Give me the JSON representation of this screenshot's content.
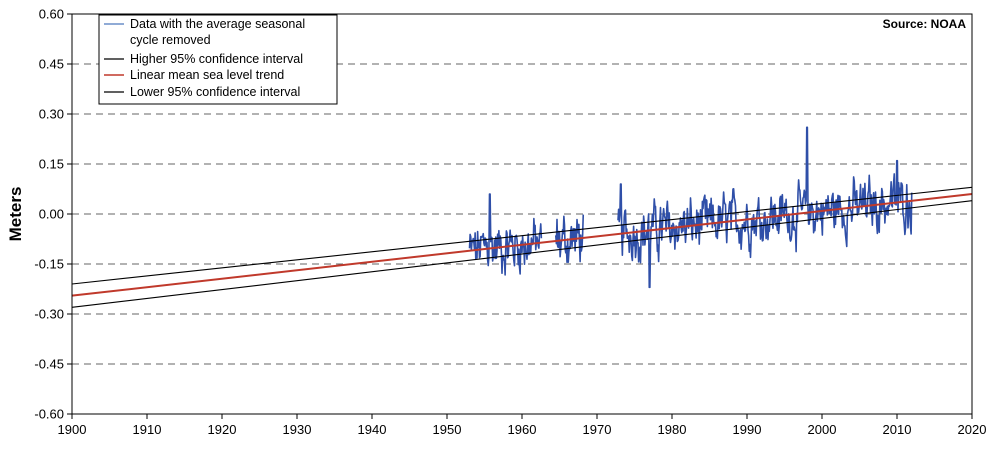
{
  "chart_data": {
    "type": "line",
    "source_label": "Source: NOAA",
    "ylabel": "Meters",
    "xlabel": "",
    "xlim": [
      1900,
      2020
    ],
    "ylim": [
      -0.6,
      0.6
    ],
    "x_ticks": [
      "1900",
      "1910",
      "1920",
      "1930",
      "1940",
      "1950",
      "1960",
      "1970",
      "1980",
      "1990",
      "2000",
      "2010",
      "2020"
    ],
    "y_ticks": [
      "0.60",
      "0.45",
      "0.30",
      "0.15",
      "0.00",
      "-0.15",
      "-0.30",
      "-0.45",
      "-0.60"
    ],
    "y_tick_values": [
      0.6,
      0.45,
      0.3,
      0.15,
      0.0,
      -0.15,
      -0.3,
      -0.45,
      -0.6
    ],
    "x_tick_values": [
      1900,
      1910,
      1920,
      1930,
      1940,
      1950,
      1960,
      1970,
      1980,
      1990,
      2000,
      2010,
      2020
    ],
    "grid": {
      "horizontal_dashed": true
    },
    "legend": {
      "placement": "top-left",
      "entries": [
        {
          "label_line1": "Data with the average seasonal",
          "label_line2": "cycle removed",
          "color": "#6b8fc9"
        },
        {
          "label_line1": "Higher 95% confidence interval",
          "color": "#000000"
        },
        {
          "label_line1": "Linear mean sea level trend",
          "color": "#c0392b"
        },
        {
          "label_line1": "Lower 95% confidence interval",
          "color": "#000000"
        }
      ]
    },
    "series": [
      {
        "name": "Data with the average seasonal cycle removed",
        "kind": "monthly",
        "color": "#2f4fa8",
        "segments": [
          {
            "start": 1953.0,
            "end": 1962.6
          },
          {
            "start": 1964.5,
            "end": 1968.2
          },
          {
            "start": 1972.8,
            "end": 2012.0
          }
        ],
        "peaks": [
          {
            "x": 1955.7,
            "y": 0.06
          },
          {
            "x": 1973.2,
            "y": 0.09
          },
          {
            "x": 1977.0,
            "y": -0.22
          },
          {
            "x": 1998.0,
            "y": 0.26
          },
          {
            "x": 2010.0,
            "y": 0.16
          }
        ]
      },
      {
        "name": "Higher 95% confidence interval",
        "color": "#000000",
        "x": [
          1900,
          2020
        ],
        "values": [
          -0.21,
          0.08
        ]
      },
      {
        "name": "Linear mean sea level trend",
        "color": "#c0392b",
        "x": [
          1900,
          2020
        ],
        "values": [
          -0.245,
          0.06
        ]
      },
      {
        "name": "Lower 95% confidence interval",
        "color": "#000000",
        "x": [
          1900,
          2020
        ],
        "values": [
          -0.28,
          0.04
        ]
      }
    ]
  }
}
